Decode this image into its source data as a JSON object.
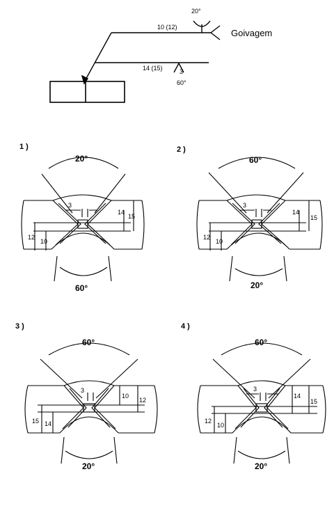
{
  "symbol": {
    "arrow_side_dim": "14 (15)",
    "arrow_side_depth": "3",
    "arrow_side_angle": "60°",
    "other_side_dim": "10 (12)",
    "other_side_angle": "20°",
    "tail_note": "Goivagem"
  },
  "options": [
    {
      "label": "1 )",
      "top_angle": "20°",
      "bottom_angle": "60°",
      "gap": "3",
      "right_dims": [
        "14",
        "15"
      ],
      "left_dims": [
        "12",
        "10"
      ]
    },
    {
      "label": "2 )",
      "top_angle": "60°",
      "bottom_angle": "20°",
      "gap": "3",
      "right_dims": [
        "14",
        "15"
      ],
      "left_dims": [
        "12",
        "10"
      ]
    },
    {
      "label": "3 )",
      "top_angle": "60°",
      "bottom_angle": "20°",
      "gap": "3",
      "right_dims": [
        "10",
        "12"
      ],
      "left_dims": [
        "15",
        "14"
      ]
    },
    {
      "label": "4 )",
      "top_angle": "60°",
      "bottom_angle": "20°",
      "gap": "3",
      "right_dims": [
        "14",
        "15"
      ],
      "left_dims": [
        "12",
        "10"
      ]
    }
  ]
}
